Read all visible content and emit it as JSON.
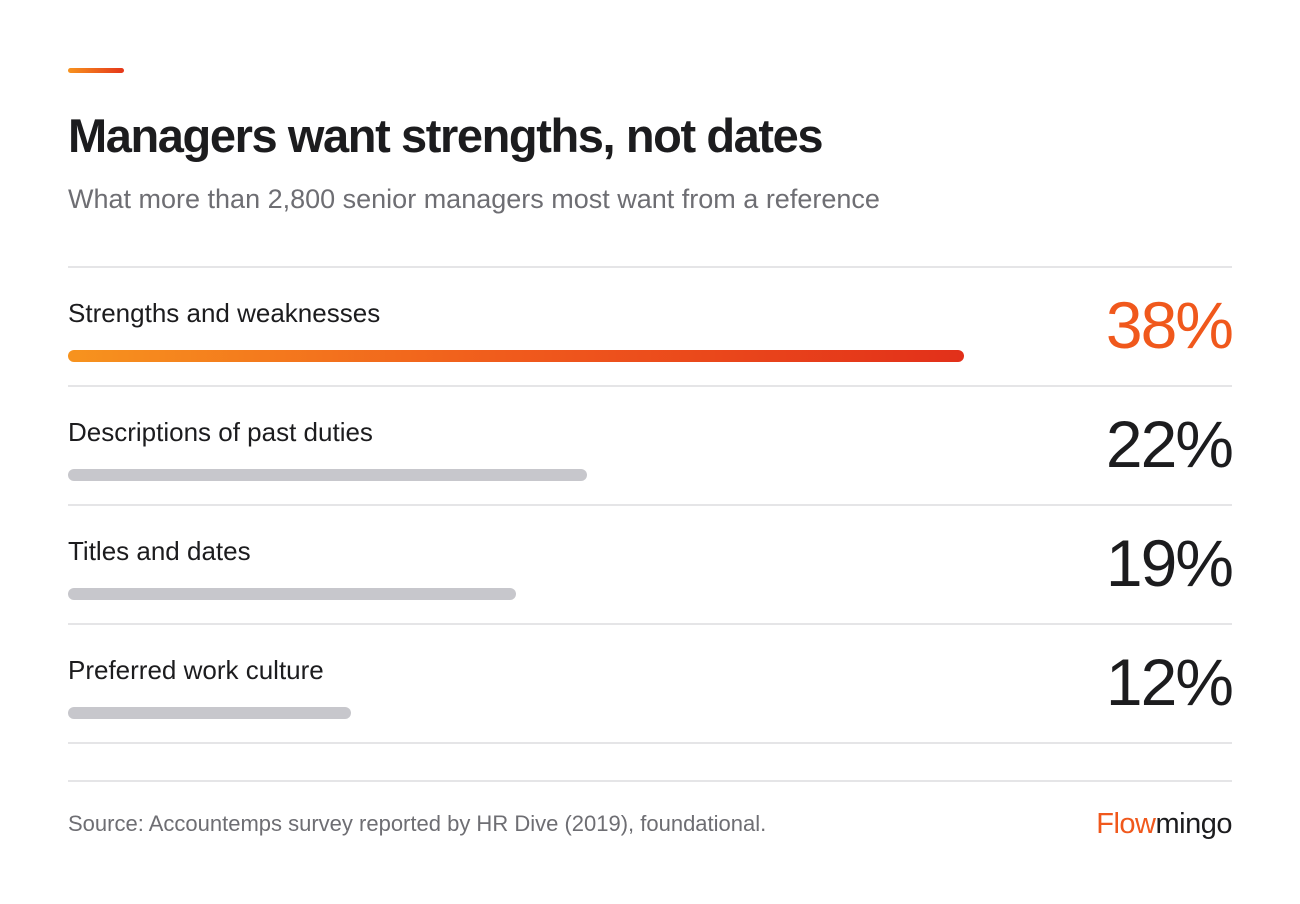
{
  "header": {
    "title": "Managers want strengths, not dates",
    "subtitle": "What more than 2,800 senior managers most want from a reference"
  },
  "chart_data": {
    "type": "bar",
    "orientation": "horizontal",
    "title": "Managers want strengths, not dates",
    "subtitle": "What more than 2,800 senior managers most want from a reference",
    "categories": [
      "Strengths and weaknesses",
      "Descriptions of past duties",
      "Titles and dates",
      "Preferred work culture"
    ],
    "values": [
      38,
      22,
      19,
      12
    ],
    "value_labels": [
      "38%",
      "22%",
      "19%",
      "12%"
    ],
    "unit": "%",
    "xlim": [
      0,
      38
    ],
    "highlight_index": 0,
    "grid": false,
    "colors": {
      "highlight_start": "#f7931e",
      "highlight_end": "#e2301a",
      "default": "#c7c7cc",
      "highlight_text": "#f0581c"
    }
  },
  "footer": {
    "source": "Source: Accountemps survey reported by HR Dive (2019), foundational.",
    "logo_part1": "Flow",
    "logo_part2": "mingo"
  }
}
